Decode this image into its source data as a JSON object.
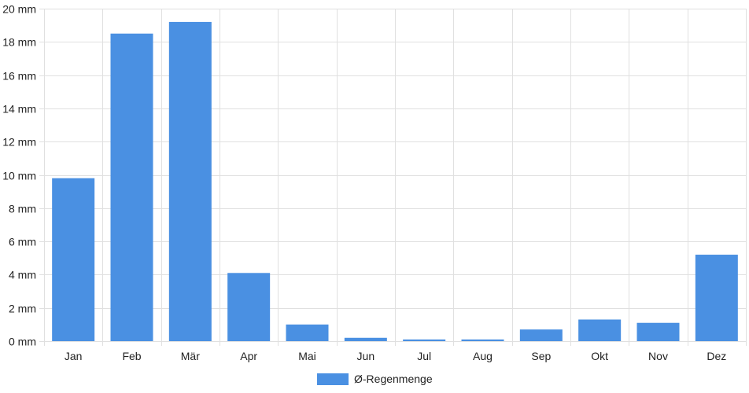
{
  "chart_data": {
    "type": "bar",
    "categories": [
      "Jan",
      "Feb",
      "Mär",
      "Apr",
      "Mai",
      "Jun",
      "Jul",
      "Aug",
      "Sep",
      "Okt",
      "Nov",
      "Dez"
    ],
    "series": [
      {
        "name": "Ø-Regenmenge",
        "values": [
          9.8,
          18.5,
          19.2,
          4.1,
          1.0,
          0.2,
          0.1,
          0.1,
          0.7,
          1.3,
          1.1,
          5.2
        ]
      }
    ],
    "ylim": [
      0,
      20
    ],
    "yticks": [
      0,
      2,
      4,
      6,
      8,
      10,
      12,
      14,
      16,
      18,
      20
    ],
    "y_unit_suffix": " mm",
    "grid": true,
    "legend_position": "bottom-center",
    "colors": {
      "bar": "#4a90e2",
      "grid": "#e0e0e0",
      "text": "#222222"
    }
  }
}
